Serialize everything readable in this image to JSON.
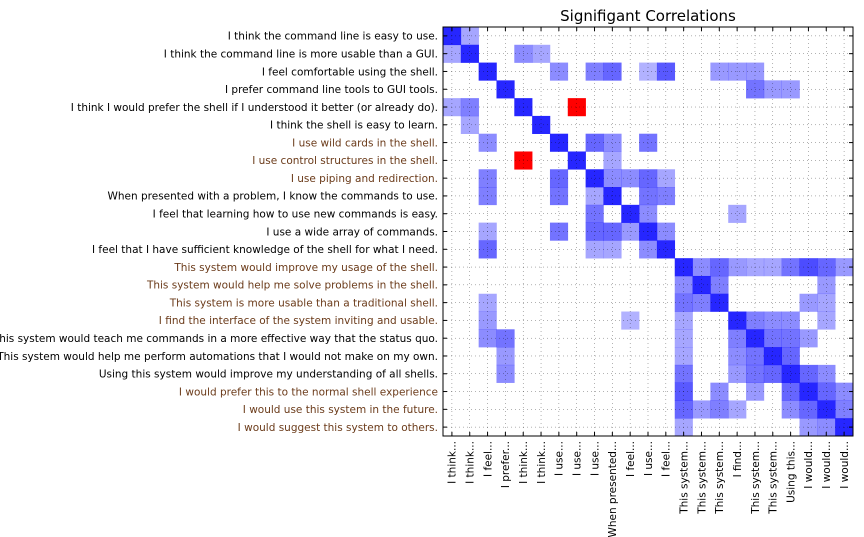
{
  "chart_data": {
    "type": "heatmap",
    "title": "Signifigant Correlations",
    "grid": true,
    "colors": {
      "positive": "#0000ff",
      "negative": "#ff0000",
      "label_default": "#000000",
      "label_highlight": "#6b3b1a"
    },
    "row_labels": [
      "I think the command line is easy to use.",
      "I think the command line is more usable than a GUI.",
      "I feel comfortable using the shell.",
      "I prefer command line tools to GUI tools.",
      "I think I would prefer the shell if I understood it better (or already do).",
      "I think the shell is easy to learn.",
      "I use wild cards in the shell.",
      "I use control structures in the shell.",
      "I use piping and redirection.",
      "When presented with a problem, I know the commands to use.",
      "I feel that learning how to use new commands is easy.",
      "I use a wide array of commands.",
      "I feel that I have sufficient knowledge of the shell for what I need.",
      "This system would improve my usage of the shell.",
      "This system would help me solve problems in the shell.",
      "This system is more usable than a traditional shell.",
      "I find the interface of the system inviting and usable.",
      "This system would teach me commands in a more effective way that  the status quo.",
      "This system would help me perform automations that I would not make on my own.",
      "Using this system would improve my understanding of all shells.",
      "I would prefer this to the normal shell experience",
      "I would use this system in the future.",
      "I would suggest this system to others."
    ],
    "highlighted_rows": [
      6,
      7,
      8,
      13,
      14,
      15,
      16,
      20,
      21,
      22
    ],
    "col_labels": [
      "I think...",
      "I think...",
      "I feel...",
      "I prefer...",
      "I think...",
      "I think...",
      "I use...",
      "I use...",
      "I use...",
      "When presented...",
      "I feel...",
      "I use...",
      "I feel...",
      "This system...",
      "This system...",
      "This system...",
      "I find...",
      "This system...",
      "This system...",
      "Using this...",
      "I would...",
      "I would...",
      "I would..."
    ],
    "values": [
      [
        1.0,
        0.35,
        0,
        0,
        0,
        0,
        0,
        0,
        0,
        0,
        0,
        0,
        0,
        0,
        0,
        0,
        0,
        0,
        0,
        0,
        0,
        0,
        0
      ],
      [
        0.35,
        1.0,
        0,
        0,
        0.45,
        0.35,
        0,
        0,
        0,
        0,
        0,
        0,
        0,
        0,
        0,
        0,
        0,
        0,
        0,
        0,
        0,
        0,
        0
      ],
      [
        0,
        0,
        1.0,
        0,
        0,
        0,
        0.45,
        0,
        0.5,
        0.6,
        0,
        0.3,
        0.65,
        0,
        0,
        0.4,
        0.4,
        0.4,
        0,
        0,
        0,
        0,
        0
      ],
      [
        0,
        0,
        0,
        1.0,
        0,
        0,
        0,
        0,
        0,
        0,
        0,
        0,
        0,
        0,
        0,
        0,
        0,
        0.55,
        0.4,
        0.4,
        0,
        0,
        0
      ],
      [
        0.35,
        0.5,
        0,
        0,
        1.0,
        0,
        0,
        -1.0,
        0,
        0,
        0,
        0,
        0,
        0,
        0,
        0,
        0,
        0,
        0,
        0,
        0,
        0,
        0
      ],
      [
        0,
        0.35,
        0,
        0,
        0,
        1.0,
        0,
        0,
        0,
        0,
        0,
        0,
        0,
        0,
        0,
        0,
        0,
        0,
        0,
        0,
        0,
        0,
        0
      ],
      [
        0,
        0,
        0.45,
        0,
        0,
        0,
        1.0,
        0,
        0.6,
        0.45,
        0,
        0.55,
        0,
        0,
        0,
        0,
        0,
        0,
        0,
        0,
        0,
        0,
        0
      ],
      [
        0,
        0,
        0,
        0,
        -1.0,
        0,
        0,
        1.0,
        0,
        0.35,
        0,
        0,
        0,
        0,
        0,
        0,
        0,
        0,
        0,
        0,
        0,
        0,
        0
      ],
      [
        0,
        0,
        0.5,
        0,
        0,
        0,
        0.6,
        0,
        1.0,
        0.45,
        0.45,
        0.6,
        0.35,
        0,
        0,
        0,
        0,
        0,
        0,
        0,
        0,
        0,
        0
      ],
      [
        0,
        0,
        0.5,
        0,
        0,
        0,
        0.55,
        0,
        0.35,
        1.0,
        0,
        0.55,
        0.5,
        0,
        0,
        0,
        0,
        0,
        0,
        0,
        0,
        0,
        0
      ],
      [
        0,
        0,
        0,
        0,
        0,
        0,
        0,
        0,
        0.55,
        0,
        1.0,
        0.45,
        0,
        0,
        0,
        0,
        0.35,
        0,
        0,
        0,
        0,
        0,
        0
      ],
      [
        0,
        0,
        0.35,
        0,
        0,
        0,
        0.55,
        0,
        0.6,
        0.6,
        0.4,
        1.0,
        0.45,
        0,
        0,
        0,
        0,
        0,
        0,
        0,
        0,
        0,
        0
      ],
      [
        0,
        0,
        0.6,
        0,
        0,
        0,
        0,
        0,
        0.35,
        0.35,
        0,
        0.45,
        1.0,
        0,
        0,
        0,
        0,
        0,
        0,
        0,
        0,
        0,
        0
      ],
      [
        0,
        0,
        0,
        0,
        0,
        0,
        0,
        0,
        0,
        0,
        0,
        0,
        0,
        1.0,
        0.45,
        0.6,
        0.4,
        0.35,
        0.35,
        0.55,
        0.7,
        0.6,
        0.4
      ],
      [
        0,
        0,
        0,
        0,
        0,
        0,
        0,
        0,
        0,
        0,
        0,
        0,
        0,
        0.45,
        1.0,
        0.5,
        0,
        0,
        0,
        0,
        0,
        0.4,
        0
      ],
      [
        0,
        0,
        0.35,
        0,
        0,
        0,
        0,
        0,
        0,
        0,
        0,
        0,
        0,
        0.55,
        0.5,
        1.0,
        0,
        0,
        0,
        0,
        0.4,
        0.35,
        0
      ],
      [
        0,
        0,
        0.4,
        0,
        0,
        0,
        0,
        0,
        0,
        0,
        0.3,
        0,
        0,
        0.35,
        0,
        0,
        1.0,
        0.5,
        0.45,
        0.45,
        0,
        0.35,
        0
      ],
      [
        0,
        0,
        0.45,
        0.55,
        0,
        0,
        0,
        0,
        0,
        0,
        0,
        0,
        0,
        0.35,
        0,
        0,
        0.5,
        1.0,
        0.55,
        0.55,
        0.4,
        0,
        0
      ],
      [
        0,
        0,
        0,
        0.4,
        0,
        0,
        0,
        0,
        0,
        0,
        0,
        0,
        0,
        0.35,
        0,
        0,
        0.45,
        0.55,
        1.0,
        0.6,
        0,
        0,
        0
      ],
      [
        0,
        0,
        0,
        0.45,
        0,
        0,
        0,
        0,
        0,
        0,
        0,
        0,
        0,
        0.55,
        0,
        0,
        0.4,
        0.55,
        0.6,
        1.0,
        0.6,
        0.45,
        0
      ],
      [
        0,
        0,
        0,
        0,
        0,
        0,
        0,
        0,
        0,
        0,
        0,
        0,
        0,
        0.65,
        0,
        0.45,
        0,
        0.4,
        0,
        0.6,
        1.0,
        0.6,
        0.45
      ],
      [
        0,
        0,
        0,
        0,
        0,
        0,
        0,
        0,
        0,
        0,
        0,
        0,
        0,
        0.6,
        0.4,
        0.5,
        0.35,
        0,
        0,
        0.45,
        0.6,
        1.0,
        0.5
      ],
      [
        0,
        0,
        0,
        0,
        0,
        0,
        0,
        0,
        0,
        0,
        0,
        0,
        0,
        0.35,
        0,
        0,
        0,
        0,
        0,
        0,
        0.4,
        0.45,
        1.0
      ]
    ]
  }
}
